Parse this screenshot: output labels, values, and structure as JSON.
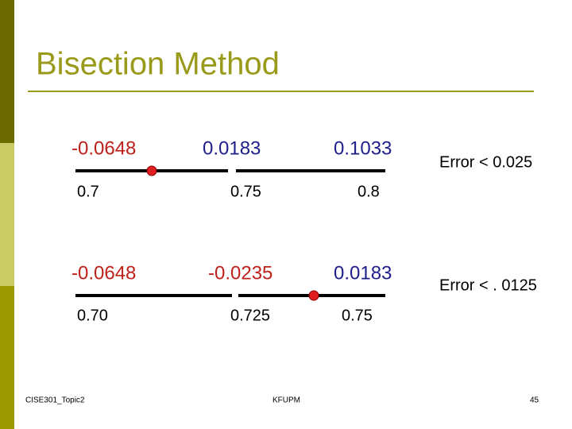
{
  "header": {
    "title": "Bisection Method"
  },
  "rows": [
    {
      "f_values": [
        "-0.0648",
        "0.0183",
        "0.1033"
      ],
      "x_values": [
        "0.7",
        "0.75",
        "0.8"
      ],
      "error": "Error < 0.025"
    },
    {
      "f_values": [
        "-0.0648",
        "-0.0235",
        "0.0183"
      ],
      "x_values": [
        "0.70",
        "0.725",
        "0.75"
      ],
      "error": "Error < . 0125"
    }
  ],
  "footer": {
    "left": "CISE301_Topic2",
    "center": "KFUPM",
    "page": "45"
  }
}
